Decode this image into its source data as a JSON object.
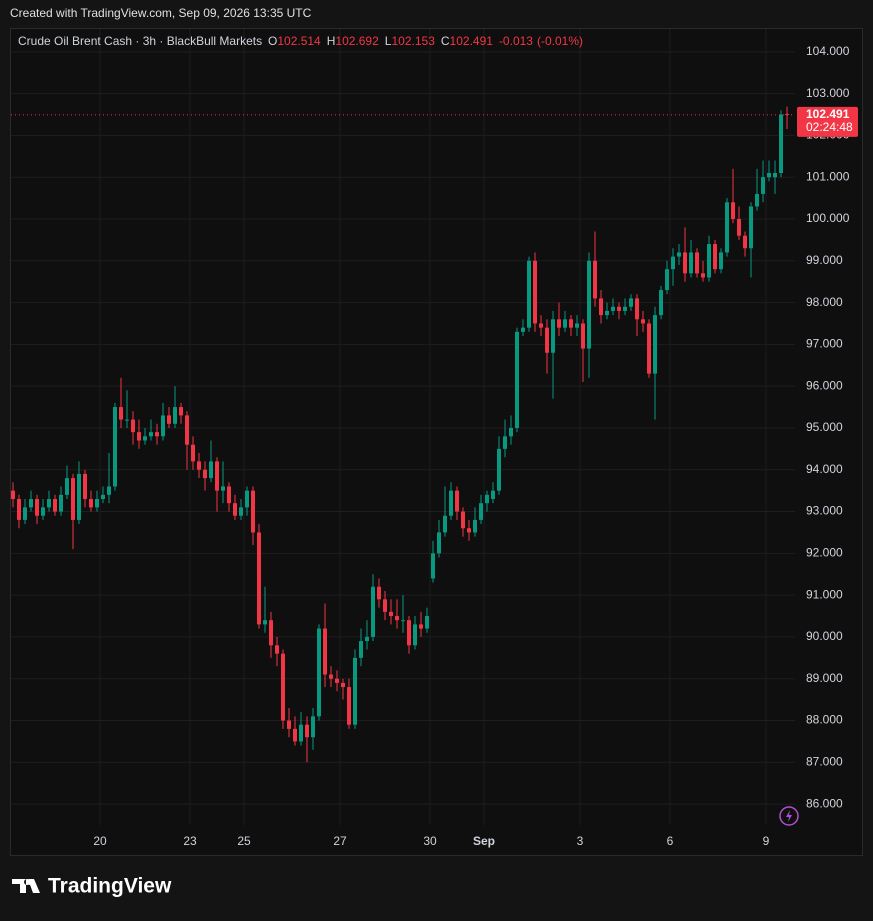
{
  "header": {
    "created": "Created with TradingView.com, Sep 09, 2026 13:35 UTC"
  },
  "footer": {
    "brand": "TradingView"
  },
  "chart_data": {
    "type": "candlestick",
    "title": "Crude Oil Brent Cash · 3h · BlackBull Markets",
    "legend_labels": [
      "O",
      "H",
      "L",
      "C"
    ],
    "change": -0.013,
    "change_percent_label": "(-0.01%)",
    "countdown": "02:24:48",
    "up_color": "#089981",
    "down_color": "#f23645",
    "grid": true,
    "xlim": [
      -0.5,
      130.33
    ],
    "ylim": [
      85.5,
      104.57
    ],
    "xticks": [
      {
        "value": 14.5,
        "label": "20"
      },
      {
        "value": 29.5,
        "label": "23"
      },
      {
        "value": 38.5,
        "label": "25"
      },
      {
        "value": 54.5,
        "label": "27"
      },
      {
        "value": 69.5,
        "label": "30"
      },
      {
        "value": 78.5,
        "label": "Sep"
      },
      {
        "value": 94.5,
        "label": "3"
      },
      {
        "value": 109.5,
        "label": "6"
      },
      {
        "value": 125.5,
        "label": "9"
      }
    ],
    "yticks": [
      {
        "value": 86,
        "label": "86.000"
      },
      {
        "value": 87,
        "label": "87.000"
      },
      {
        "value": 88,
        "label": "88.000"
      },
      {
        "value": 89,
        "label": "89.000"
      },
      {
        "value": 90,
        "label": "90.000"
      },
      {
        "value": 91,
        "label": "91.000"
      },
      {
        "value": 92,
        "label": "92.000"
      },
      {
        "value": 93,
        "label": "93.000"
      },
      {
        "value": 94,
        "label": "94.000"
      },
      {
        "value": 95,
        "label": "95.000"
      },
      {
        "value": 96,
        "label": "96.000"
      },
      {
        "value": 97,
        "label": "97.000"
      },
      {
        "value": 98,
        "label": "98.000"
      },
      {
        "value": 99,
        "label": "99.000"
      },
      {
        "value": 100,
        "label": "100.000"
      },
      {
        "value": 101,
        "label": "101.000"
      },
      {
        "value": 102,
        "label": "102.000"
      },
      {
        "value": 103,
        "label": "103.000"
      },
      {
        "value": 104,
        "label": "104.000"
      }
    ],
    "ohlc": [
      [
        93.5,
        93.7,
        93.1,
        93.3
      ],
      [
        93.3,
        93.4,
        92.6,
        92.8
      ],
      [
        92.8,
        93.3,
        92.7,
        93.1
      ],
      [
        93.1,
        93.5,
        93.0,
        93.3
      ],
      [
        93.3,
        93.4,
        92.7,
        92.9
      ],
      [
        92.9,
        93.3,
        92.8,
        93.1
      ],
      [
        93.1,
        93.5,
        93.0,
        93.3
      ],
      [
        93.3,
        93.4,
        92.9,
        93.0
      ],
      [
        93.0,
        93.6,
        92.9,
        93.4
      ],
      [
        93.4,
        94.1,
        93.3,
        93.8
      ],
      [
        93.8,
        93.9,
        92.1,
        92.8
      ],
      [
        92.8,
        94.2,
        92.7,
        93.9
      ],
      [
        93.9,
        94.0,
        93.1,
        93.3
      ],
      [
        93.3,
        93.5,
        93.0,
        93.1
      ],
      [
        93.1,
        93.5,
        93.0,
        93.3
      ],
      [
        93.3,
        93.6,
        93.2,
        93.4
      ],
      [
        93.4,
        94.4,
        93.2,
        93.6
      ],
      [
        93.6,
        95.6,
        93.5,
        95.5
      ],
      [
        95.5,
        96.2,
        95.0,
        95.2
      ],
      [
        95.2,
        95.9,
        95.0,
        95.2
      ],
      [
        95.2,
        95.4,
        94.6,
        94.9
      ],
      [
        94.9,
        95.2,
        94.5,
        94.7
      ],
      [
        94.7,
        95.0,
        94.6,
        94.8
      ],
      [
        94.8,
        95.2,
        94.7,
        94.9
      ],
      [
        94.9,
        95.1,
        94.6,
        94.8
      ],
      [
        94.8,
        95.6,
        94.7,
        95.3
      ],
      [
        95.3,
        95.5,
        95.0,
        95.1
      ],
      [
        95.1,
        96.0,
        95.0,
        95.5
      ],
      [
        95.5,
        95.6,
        95.1,
        95.3
      ],
      [
        95.3,
        95.4,
        94.0,
        94.6
      ],
      [
        94.6,
        94.8,
        94.0,
        94.2
      ],
      [
        94.2,
        94.4,
        93.8,
        94.0
      ],
      [
        94.0,
        94.2,
        93.5,
        93.8
      ],
      [
        93.8,
        94.7,
        93.7,
        94.2
      ],
      [
        94.2,
        94.3,
        93.0,
        93.5
      ],
      [
        93.5,
        94.2,
        93.2,
        93.6
      ],
      [
        93.6,
        93.7,
        93.0,
        93.2
      ],
      [
        93.2,
        93.4,
        92.8,
        92.9
      ],
      [
        92.9,
        93.3,
        92.8,
        93.1
      ],
      [
        93.1,
        93.6,
        92.9,
        93.5
      ],
      [
        93.5,
        93.6,
        92.2,
        92.5
      ],
      [
        92.5,
        92.7,
        90.2,
        90.3
      ],
      [
        90.3,
        91.2,
        90.1,
        90.4
      ],
      [
        90.4,
        90.6,
        89.5,
        89.8
      ],
      [
        89.8,
        90.0,
        89.3,
        89.6
      ],
      [
        89.6,
        89.7,
        87.8,
        88.0
      ],
      [
        88.0,
        88.3,
        87.6,
        87.8
      ],
      [
        87.8,
        88.1,
        87.4,
        87.5
      ],
      [
        87.5,
        88.2,
        87.4,
        87.9
      ],
      [
        87.9,
        88.1,
        87.0,
        87.6
      ],
      [
        87.6,
        88.3,
        87.3,
        88.1
      ],
      [
        88.1,
        90.3,
        88.0,
        90.2
      ],
      [
        90.2,
        90.8,
        88.8,
        89.1
      ],
      [
        89.1,
        89.3,
        88.8,
        89.0
      ],
      [
        89.0,
        89.2,
        88.7,
        88.9
      ],
      [
        88.9,
        89.0,
        88.5,
        88.8
      ],
      [
        88.8,
        89.0,
        87.8,
        87.9
      ],
      [
        87.9,
        89.7,
        87.8,
        89.5
      ],
      [
        89.5,
        90.2,
        89.3,
        89.9
      ],
      [
        89.9,
        90.4,
        89.7,
        90.0
      ],
      [
        90.0,
        91.5,
        89.9,
        91.2
      ],
      [
        91.2,
        91.4,
        90.7,
        90.9
      ],
      [
        90.9,
        91.1,
        90.4,
        90.6
      ],
      [
        90.6,
        90.9,
        90.3,
        90.5
      ],
      [
        90.5,
        90.9,
        90.2,
        90.4
      ],
      [
        90.4,
        91.0,
        90.1,
        90.4
      ],
      [
        90.4,
        90.5,
        89.6,
        89.8
      ],
      [
        89.8,
        90.5,
        89.7,
        90.3
      ],
      [
        90.3,
        90.6,
        90.0,
        90.2
      ],
      [
        90.2,
        90.7,
        90.1,
        90.5
      ],
      [
        91.4,
        92.3,
        91.3,
        92.0
      ],
      [
        92.0,
        92.8,
        91.9,
        92.5
      ],
      [
        92.5,
        93.6,
        92.4,
        92.9
      ],
      [
        92.9,
        93.7,
        92.8,
        93.5
      ],
      [
        93.5,
        93.6,
        92.8,
        93.0
      ],
      [
        93.0,
        93.1,
        92.4,
        92.6
      ],
      [
        92.6,
        92.8,
        92.3,
        92.5
      ],
      [
        92.5,
        93.1,
        92.4,
        92.8
      ],
      [
        92.8,
        93.4,
        92.7,
        93.2
      ],
      [
        93.2,
        93.5,
        93.0,
        93.4
      ],
      [
        93.3,
        93.7,
        93.2,
        93.5
      ],
      [
        93.5,
        94.8,
        93.4,
        94.5
      ],
      [
        94.5,
        95.2,
        94.3,
        94.8
      ],
      [
        94.8,
        95.3,
        94.6,
        95.0
      ],
      [
        95.0,
        97.4,
        94.9,
        97.3
      ],
      [
        97.3,
        97.6,
        97.2,
        97.4
      ],
      [
        97.4,
        99.1,
        97.3,
        99.0
      ],
      [
        99.0,
        99.2,
        97.3,
        97.5
      ],
      [
        97.5,
        97.7,
        97.2,
        97.4
      ],
      [
        97.4,
        97.6,
        96.3,
        96.8
      ],
      [
        96.8,
        97.8,
        95.7,
        97.6
      ],
      [
        97.6,
        98.0,
        97.2,
        97.4
      ],
      [
        97.4,
        97.8,
        97.3,
        97.6
      ],
      [
        97.6,
        97.7,
        97.2,
        97.4
      ],
      [
        97.4,
        97.7,
        97.2,
        97.5
      ],
      [
        97.5,
        97.6,
        96.1,
        96.9
      ],
      [
        96.9,
        99.2,
        96.2,
        99.0
      ],
      [
        99.0,
        99.7,
        97.9,
        98.1
      ],
      [
        98.1,
        98.3,
        97.5,
        97.7
      ],
      [
        97.7,
        98.0,
        97.6,
        97.8
      ],
      [
        97.8,
        98.1,
        97.7,
        97.9
      ],
      [
        97.9,
        98.0,
        97.6,
        97.8
      ],
      [
        97.8,
        98.1,
        97.7,
        97.9
      ],
      [
        97.9,
        98.2,
        97.8,
        98.1
      ],
      [
        98.1,
        98.2,
        97.2,
        97.6
      ],
      [
        97.6,
        97.8,
        97.3,
        97.5
      ],
      [
        97.5,
        97.6,
        96.2,
        96.3
      ],
      [
        96.3,
        97.9,
        95.2,
        97.7
      ],
      [
        97.7,
        98.4,
        97.6,
        98.3
      ],
      [
        98.3,
        99.0,
        98.2,
        98.8
      ],
      [
        98.8,
        99.3,
        98.4,
        99.1
      ],
      [
        99.1,
        99.4,
        98.9,
        99.2
      ],
      [
        99.2,
        99.8,
        98.5,
        98.7
      ],
      [
        98.7,
        99.5,
        98.6,
        99.2
      ],
      [
        99.2,
        99.3,
        98.6,
        98.7
      ],
      [
        98.7,
        99.0,
        98.5,
        98.6
      ],
      [
        98.6,
        99.6,
        98.5,
        99.4
      ],
      [
        99.4,
        99.5,
        98.7,
        98.8
      ],
      [
        98.8,
        99.3,
        98.7,
        99.2
      ],
      [
        99.2,
        100.5,
        99.1,
        100.4
      ],
      [
        100.4,
        101.2,
        99.9,
        100.0
      ],
      [
        100.0,
        100.3,
        99.5,
        99.6
      ],
      [
        99.6,
        99.7,
        99.1,
        99.3
      ],
      [
        99.3,
        100.4,
        98.6,
        100.3
      ],
      [
        100.3,
        101.2,
        100.2,
        100.6
      ],
      [
        100.6,
        101.4,
        100.4,
        101.0
      ],
      [
        101.0,
        101.4,
        100.9,
        101.1
      ],
      [
        101.0,
        101.4,
        100.6,
        101.1
      ],
      [
        101.1,
        102.6,
        101.0,
        102.5
      ],
      [
        102.514,
        102.692,
        102.153,
        102.491
      ]
    ]
  }
}
